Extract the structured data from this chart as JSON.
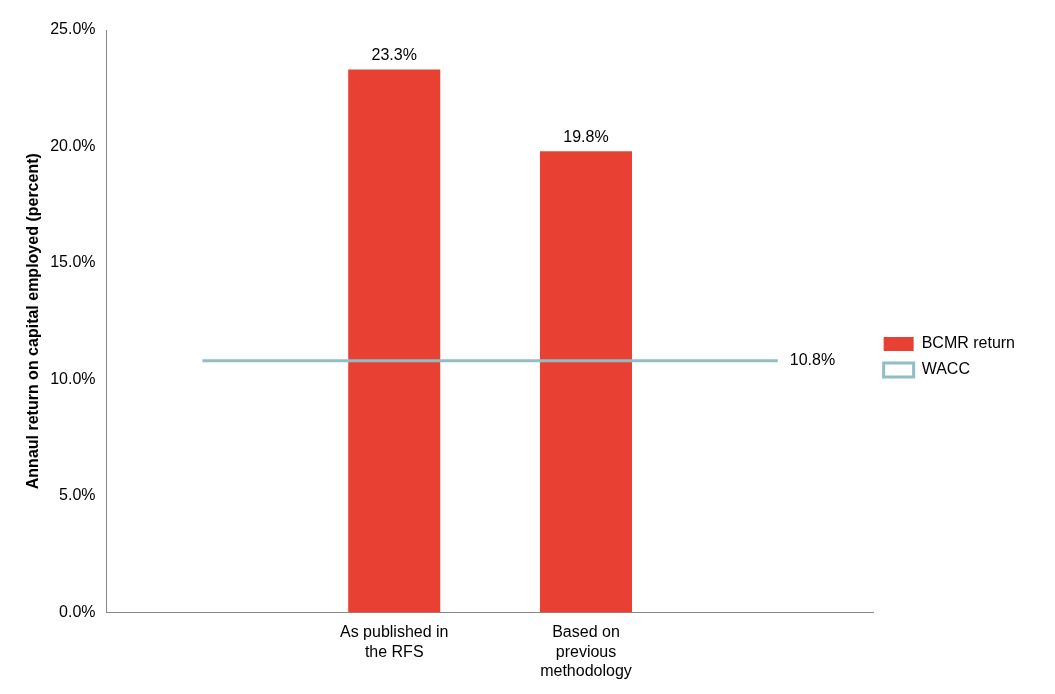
{
  "chart_data": {
    "type": "bar",
    "ylabel": "Annaul return on capital employed (percent)",
    "categories": [
      null,
      "As published in the RFS",
      "Based on previous methodology",
      null
    ],
    "series": [
      {
        "name": "BCMR return",
        "color": "#e94034",
        "values": [
          null,
          23.3,
          19.8,
          null
        ],
        "value_labels": [
          null,
          "23.3%",
          "19.8%",
          null
        ]
      },
      {
        "name": "WACC",
        "type": "line",
        "color": "#8fbfc4",
        "values": [
          10.8,
          10.8,
          10.8,
          10.8
        ],
        "value_labels": [
          null,
          null,
          null,
          "10.8%"
        ]
      }
    ],
    "ylim": [
      0,
      25
    ],
    "yticks": [
      {
        "value": 0,
        "label": "0.0%"
      },
      {
        "value": 5,
        "label": "5.0%"
      },
      {
        "value": 10,
        "label": "10.0%"
      },
      {
        "value": 15,
        "label": "15.0%"
      },
      {
        "value": 20,
        "label": "20.0%"
      },
      {
        "value": 25,
        "label": "25.0%"
      }
    ],
    "grid": false,
    "legend": "right",
    "marker": "none",
    "line_style": "solid"
  }
}
